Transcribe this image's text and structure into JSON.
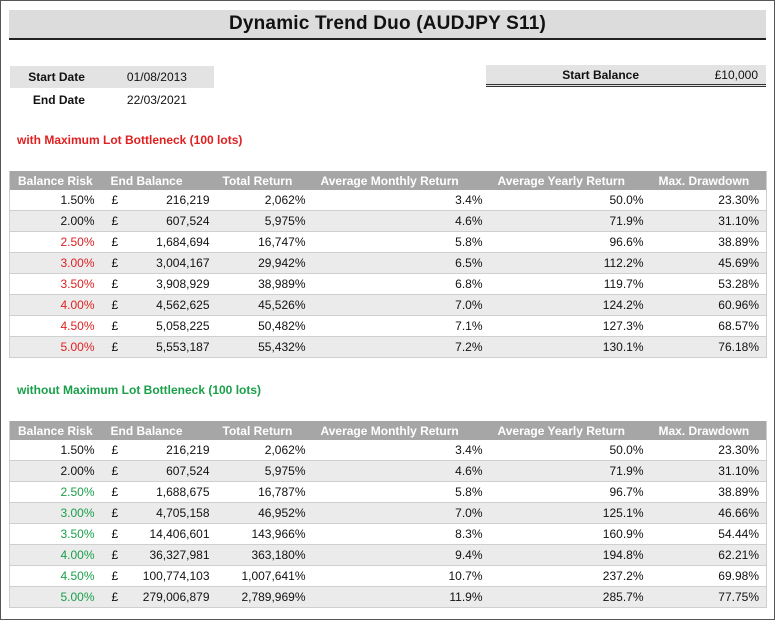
{
  "title": "Dynamic Trend Duo (AUDJPY S11)",
  "start_date": {
    "label": "Start Date",
    "value": "01/08/2013"
  },
  "end_date": {
    "label": "End Date",
    "value": "22/03/2021"
  },
  "start_balance": {
    "label": "Start Balance",
    "value": "£10,000"
  },
  "headers": [
    "Balance Risk",
    "End Balance",
    "Total Return",
    "Average Monthly Return",
    "Average Yearly Return",
    "Max. Drawdown"
  ],
  "colors": {
    "red": "#e02020",
    "green": "#1aa04a",
    "header_bg": "#a6a6a6"
  },
  "section_with": {
    "label": "with Maximum Lot Bottleneck (100 lots)",
    "rows": [
      {
        "risk": "1.50%",
        "cur": "£",
        "end": "216,219",
        "total": "2,062%",
        "monthly": "3.4%",
        "yearly": "50.0%",
        "dd": "23.30%"
      },
      {
        "risk": "2.00%",
        "cur": "£",
        "end": "607,524",
        "total": "5,975%",
        "monthly": "4.6%",
        "yearly": "71.9%",
        "dd": "31.10%"
      },
      {
        "risk": "2.50%",
        "cur": "£",
        "end": "1,684,694",
        "total": "16,747%",
        "monthly": "5.8%",
        "yearly": "96.6%",
        "dd": "38.89%"
      },
      {
        "risk": "3.00%",
        "cur": "£",
        "end": "3,004,167",
        "total": "29,942%",
        "monthly": "6.5%",
        "yearly": "112.2%",
        "dd": "45.69%"
      },
      {
        "risk": "3.50%",
        "cur": "£",
        "end": "3,908,929",
        "total": "38,989%",
        "monthly": "6.8%",
        "yearly": "119.7%",
        "dd": "53.28%"
      },
      {
        "risk": "4.00%",
        "cur": "£",
        "end": "4,562,625",
        "total": "45,526%",
        "monthly": "7.0%",
        "yearly": "124.2%",
        "dd": "60.96%"
      },
      {
        "risk": "4.50%",
        "cur": "£",
        "end": "5,058,225",
        "total": "50,482%",
        "monthly": "7.1%",
        "yearly": "127.3%",
        "dd": "68.57%"
      },
      {
        "risk": "5.00%",
        "cur": "£",
        "end": "5,553,187",
        "total": "55,432%",
        "monthly": "7.2%",
        "yearly": "130.1%",
        "dd": "76.18%"
      }
    ]
  },
  "section_without": {
    "label": "without Maximum Lot Bottleneck (100 lots)",
    "rows": [
      {
        "risk": "1.50%",
        "cur": "£",
        "end": "216,219",
        "total": "2,062%",
        "monthly": "3.4%",
        "yearly": "50.0%",
        "dd": "23.30%"
      },
      {
        "risk": "2.00%",
        "cur": "£",
        "end": "607,524",
        "total": "5,975%",
        "monthly": "4.6%",
        "yearly": "71.9%",
        "dd": "31.10%"
      },
      {
        "risk": "2.50%",
        "cur": "£",
        "end": "1,688,675",
        "total": "16,787%",
        "monthly": "5.8%",
        "yearly": "96.7%",
        "dd": "38.89%"
      },
      {
        "risk": "3.00%",
        "cur": "£",
        "end": "4,705,158",
        "total": "46,952%",
        "monthly": "7.0%",
        "yearly": "125.1%",
        "dd": "46.66%"
      },
      {
        "risk": "3.50%",
        "cur": "£",
        "end": "14,406,601",
        "total": "143,966%",
        "monthly": "8.3%",
        "yearly": "160.9%",
        "dd": "54.44%"
      },
      {
        "risk": "4.00%",
        "cur": "£",
        "end": "36,327,981",
        "total": "363,180%",
        "monthly": "9.4%",
        "yearly": "194.8%",
        "dd": "62.21%"
      },
      {
        "risk": "4.50%",
        "cur": "£",
        "end": "100,774,103",
        "total": "1,007,641%",
        "monthly": "10.7%",
        "yearly": "237.2%",
        "dd": "69.98%"
      },
      {
        "risk": "5.00%",
        "cur": "£",
        "end": "279,006,879",
        "total": "2,789,969%",
        "monthly": "11.9%",
        "yearly": "285.7%",
        "dd": "77.75%"
      }
    ]
  }
}
